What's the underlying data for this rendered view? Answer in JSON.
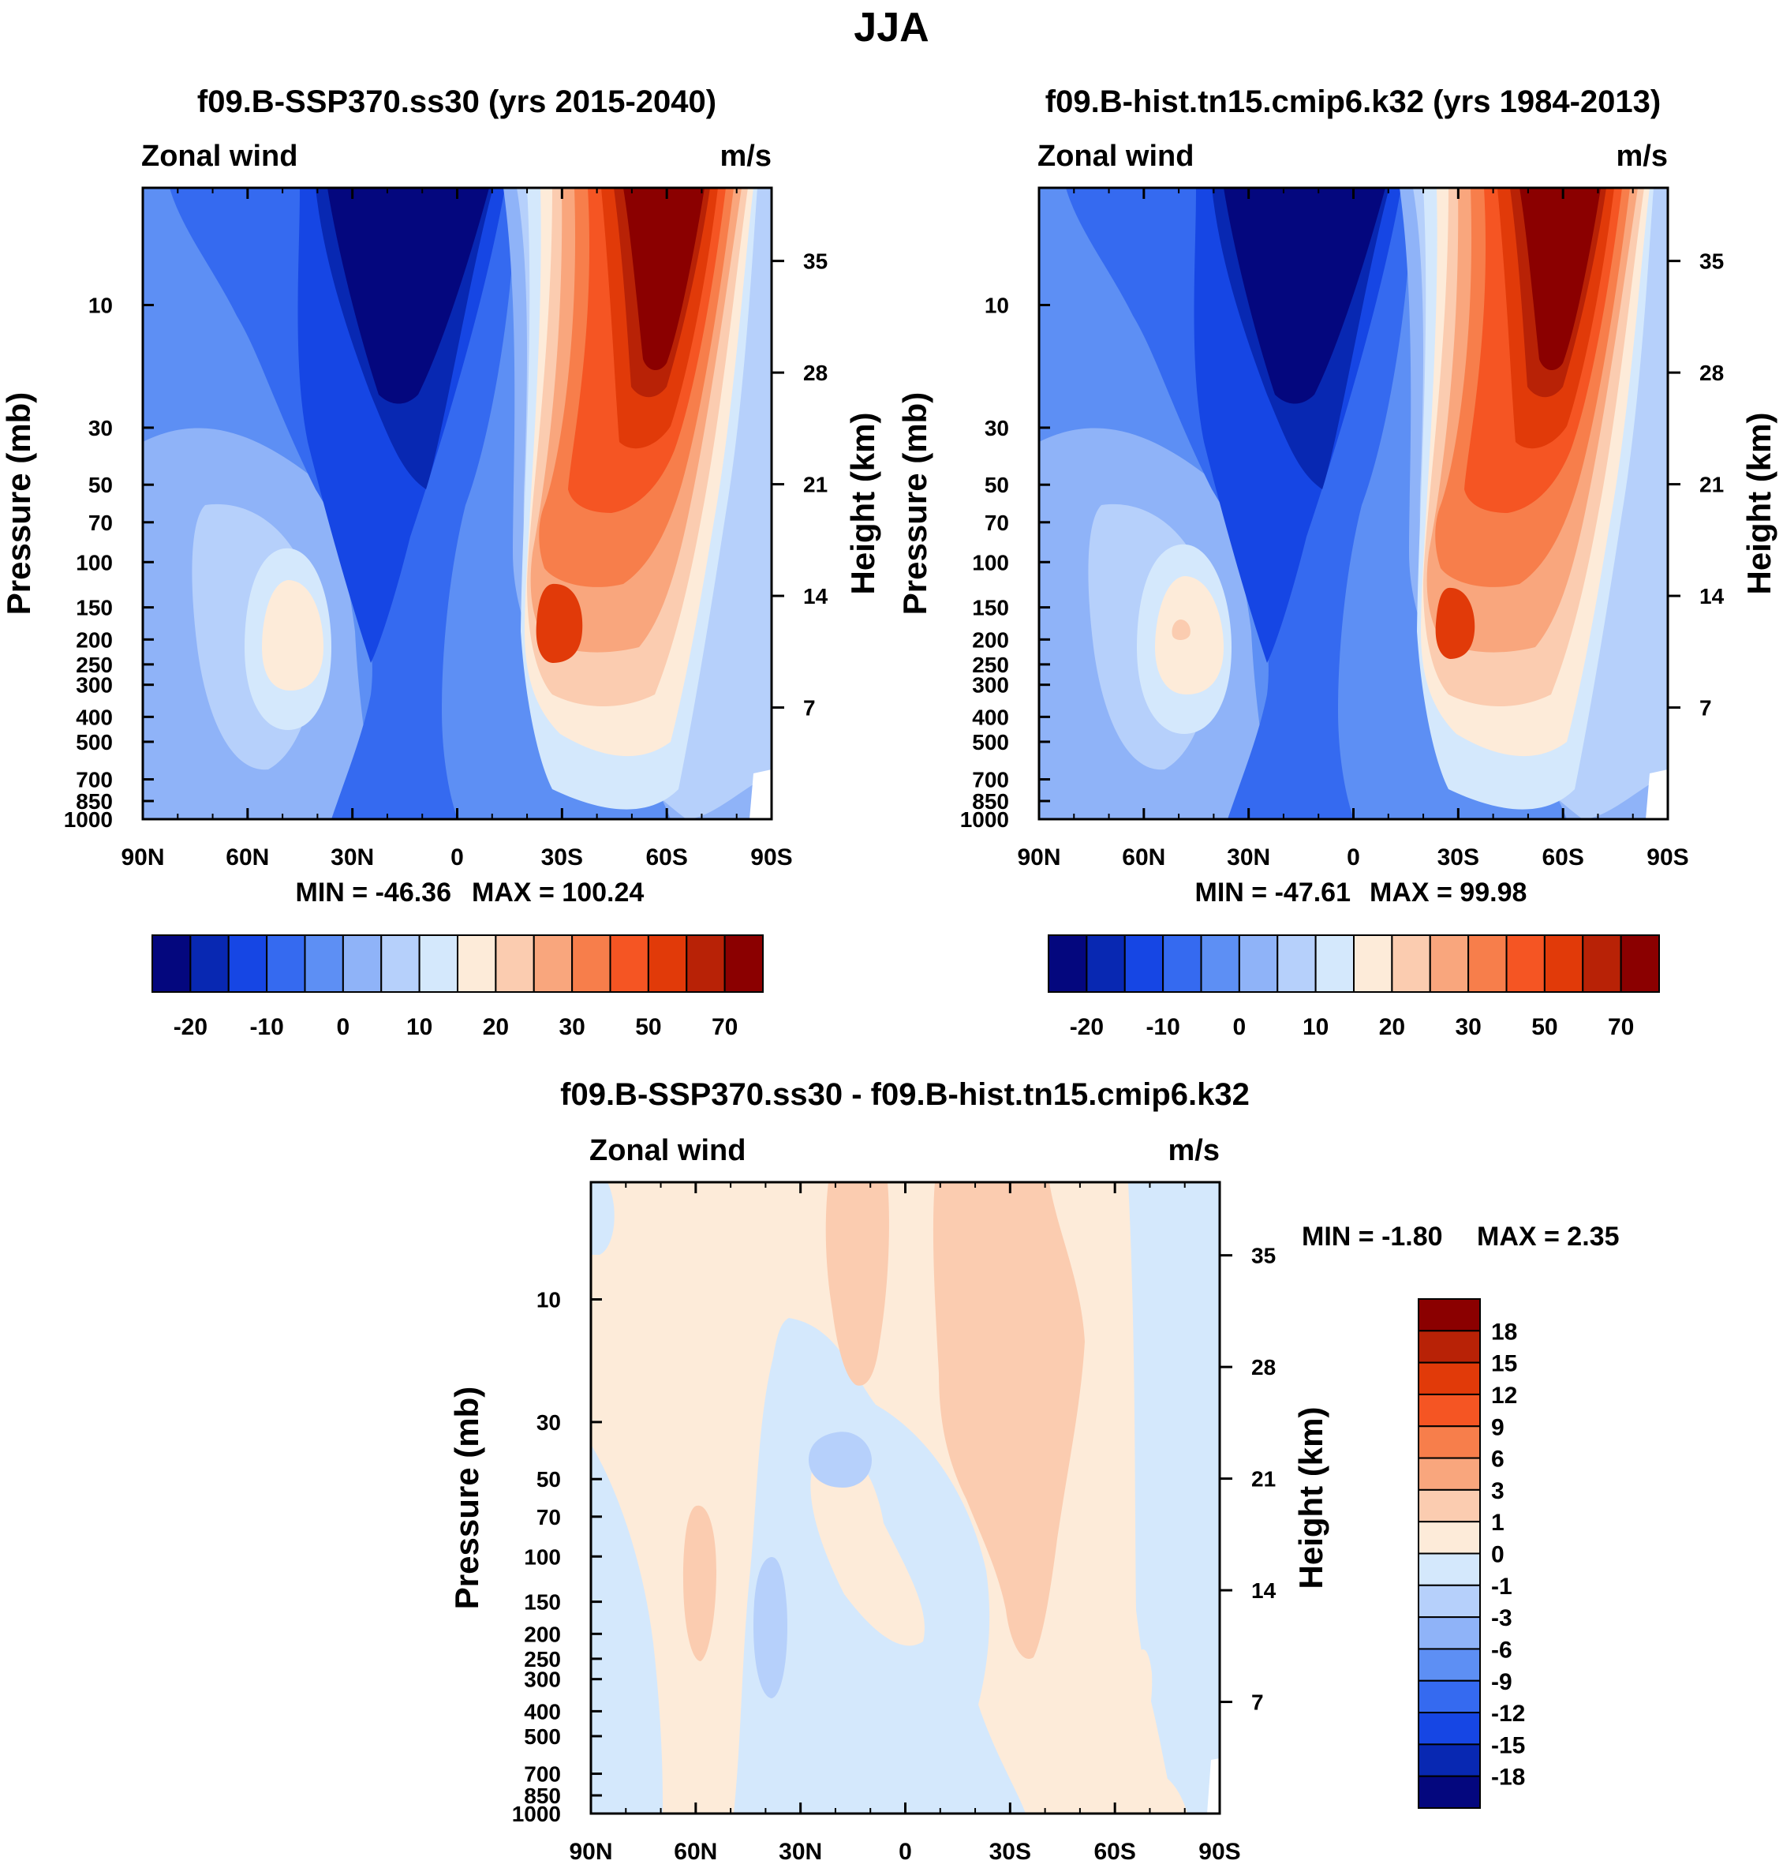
{
  "figure_title": "JJA",
  "colors": {
    "pos_scale": [
      "#fdebd9",
      "#fbccb0",
      "#f9a67d",
      "#f77e4b",
      "#f55523",
      "#e13a09",
      "#b82206",
      "#8b0000"
    ],
    "neg_scale": [
      "#d4e8fc",
      "#b6d0fb",
      "#8fb3f8",
      "#5d8ff4",
      "#356af0",
      "#1646e4",
      "#0828b2",
      "#04077e"
    ]
  },
  "chart_data": [
    {
      "type": "contour",
      "panel": "left",
      "title": "f09.B-SSP370.ss30 (yrs 2015-2040)",
      "variable": "Zonal wind",
      "units": "m/s",
      "xlabel": "",
      "ylabel": "Pressure (mb)",
      "y2label": "Height (km)",
      "x_ticks": [
        "90N",
        "60N",
        "30N",
        "0",
        "30S",
        "60S",
        "90S"
      ],
      "pressure_ticks": [
        "10",
        "30",
        "50",
        "70",
        "100",
        "150",
        "200",
        "250",
        "300",
        "400",
        "500",
        "700",
        "850",
        "1000"
      ],
      "height_ticks": [
        "35",
        "28",
        "21",
        "14",
        "7"
      ],
      "min_label": "MIN = -46.36",
      "max_label": "MAX = 100.24",
      "min": -46.36,
      "max": 100.24,
      "colorbar_labels": [
        "-20",
        "-10",
        "0",
        "10",
        "20",
        "30",
        "50",
        "70"
      ],
      "colorbar_levels": [
        -20,
        -15,
        -10,
        -5,
        0,
        5,
        10,
        15,
        20,
        25,
        30,
        40,
        50,
        60,
        70
      ]
    },
    {
      "type": "contour",
      "panel": "right",
      "title": "f09.B-hist.tn15.cmip6.k32 (yrs 1984-2013)",
      "variable": "Zonal wind",
      "units": "m/s",
      "xlabel": "",
      "ylabel": "Pressure (mb)",
      "y2label": "Height (km)",
      "x_ticks": [
        "90N",
        "60N",
        "30N",
        "0",
        "30S",
        "60S",
        "90S"
      ],
      "pressure_ticks": [
        "10",
        "30",
        "50",
        "70",
        "100",
        "150",
        "200",
        "250",
        "300",
        "400",
        "500",
        "700",
        "850",
        "1000"
      ],
      "height_ticks": [
        "35",
        "28",
        "21",
        "14",
        "7"
      ],
      "min_label": "MIN = -47.61",
      "max_label": "MAX =  99.98",
      "min": -47.61,
      "max": 99.98,
      "colorbar_labels": [
        "-20",
        "-10",
        "0",
        "10",
        "20",
        "30",
        "50",
        "70"
      ],
      "colorbar_levels": [
        -20,
        -15,
        -10,
        -5,
        0,
        5,
        10,
        15,
        20,
        25,
        30,
        40,
        50,
        60,
        70
      ]
    },
    {
      "type": "contour",
      "panel": "difference",
      "title": "f09.B-SSP370.ss30 - f09.B-hist.tn15.cmip6.k32",
      "variable": "Zonal wind",
      "units": "m/s",
      "xlabel": "",
      "ylabel": "Pressure (mb)",
      "y2label": "Height (km)",
      "x_ticks": [
        "90N",
        "60N",
        "30N",
        "0",
        "30S",
        "60S",
        "90S"
      ],
      "pressure_ticks": [
        "10",
        "30",
        "50",
        "70",
        "100",
        "150",
        "200",
        "250",
        "300",
        "400",
        "500",
        "700",
        "850",
        "1000"
      ],
      "height_ticks": [
        "35",
        "28",
        "21",
        "14",
        "7"
      ],
      "min_label": "MIN =  -1.80",
      "max_label": "MAX =    2.35",
      "min": -1.8,
      "max": 2.35,
      "colorbar_labels": [
        "18",
        "15",
        "12",
        "9",
        "6",
        "3",
        "1",
        "0",
        "-1",
        "-3",
        "-6",
        "-9",
        "-12",
        "-15",
        "-18"
      ]
    }
  ]
}
